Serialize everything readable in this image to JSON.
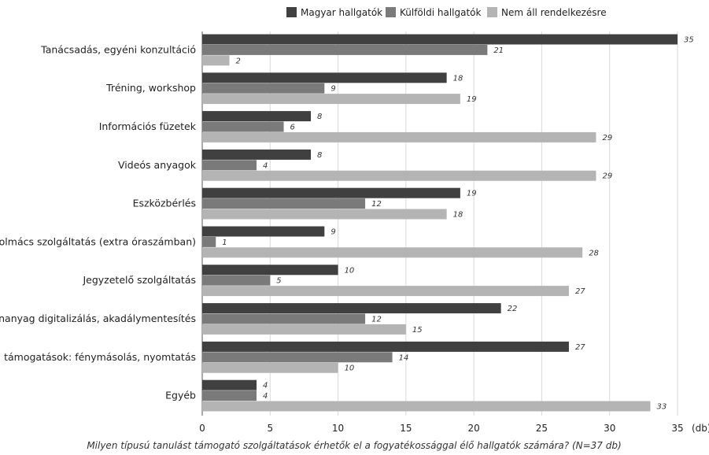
{
  "chart_data": {
    "type": "bar",
    "orientation": "horizontal",
    "categories": [
      "Tanácsadás, egyéni konzultáció",
      "Tréning, workshop",
      "Információs füzetek",
      "Videós anyagok",
      "Eszközbérlés",
      "Jeltolmács szolgáltatás (extra óraszámban)",
      "Jegyzetelő szolgáltatás",
      "Tananyag digitalizálás, akadálymentesítés",
      "Irodai támogatások: fénymásolás, nyomtatás",
      "Egyéb"
    ],
    "series": [
      {
        "name": "Magyar hallgatók",
        "color": "#404040",
        "values": [
          35,
          18,
          8,
          8,
          19,
          9,
          10,
          22,
          27,
          4
        ]
      },
      {
        "name": "Külföldi hallgatók",
        "color": "#7a7a7a",
        "values": [
          21,
          9,
          6,
          4,
          12,
          1,
          5,
          12,
          14,
          4
        ]
      },
      {
        "name": "Nem áll rendelkezésre",
        "color": "#b4b4b4",
        "values": [
          2,
          19,
          29,
          29,
          18,
          28,
          27,
          15,
          10,
          33
        ]
      }
    ],
    "xlim": [
      0,
      35
    ],
    "xticks": [
      0,
      5,
      10,
      15,
      20,
      25,
      30,
      35
    ],
    "xlabel": "(db)",
    "grid": true,
    "legend_position": "top",
    "caption": "Milyen típusú tanulást támogató szolgáltatások érhetők el a fogyatékossággal élő hallgatók számára? (N=37 db)"
  }
}
